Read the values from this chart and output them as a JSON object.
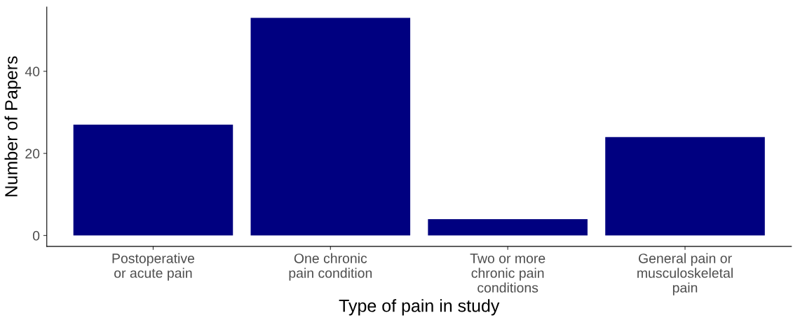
{
  "chart_data": {
    "type": "bar",
    "xlabel": "Type of pain in study",
    "ylabel": "Number of Papers",
    "categories": [
      "Postoperative\nor acute pain",
      "One chronic\npain condition",
      "Two or more\nchronic pain\nconditions",
      "General pain or\nmusculoskeletal\npain"
    ],
    "values": [
      27,
      53,
      4,
      24
    ],
    "color": "#000080",
    "ylim": [
      -2.65,
      55.65
    ],
    "yticks": [
      0,
      20,
      40
    ],
    "grid": false,
    "legend": false
  }
}
